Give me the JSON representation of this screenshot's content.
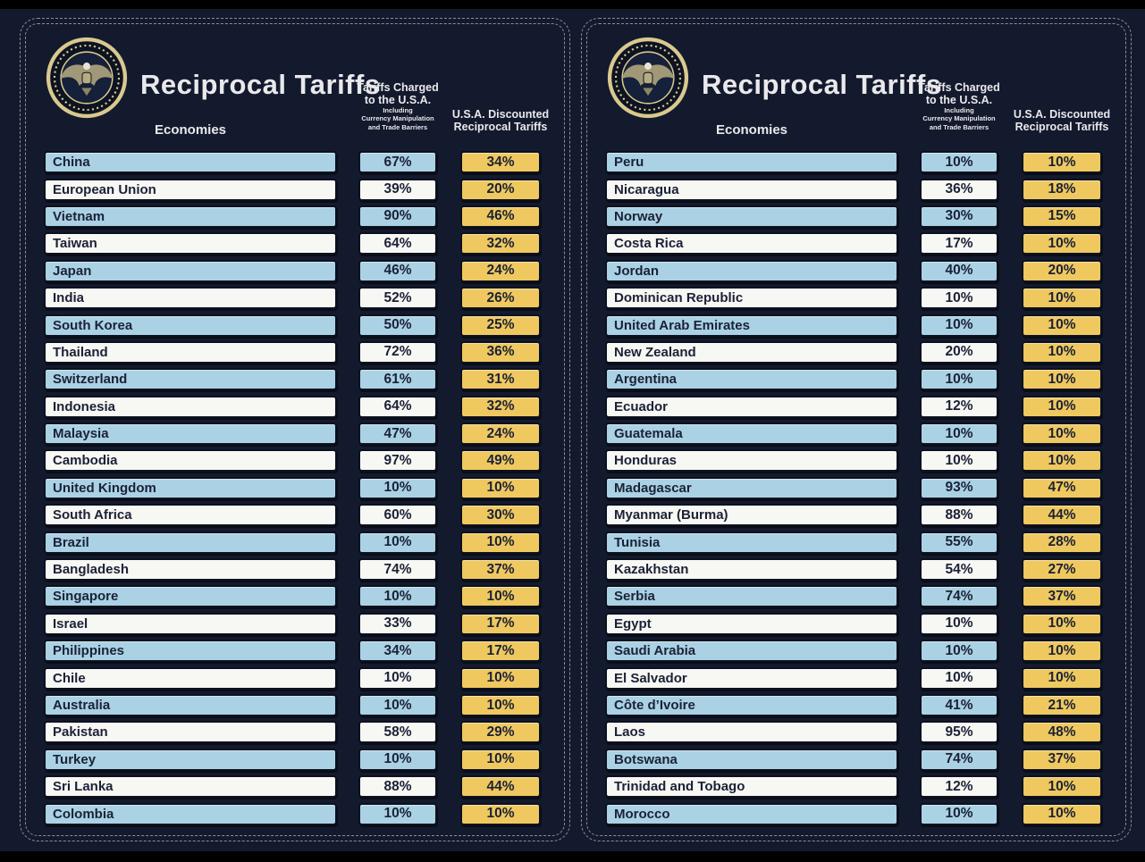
{
  "title": "Reciprocal Tariffs",
  "columns": {
    "economies": "Economies",
    "charged_line1": "Tariffs Charged",
    "charged_line2": "to the U.S.A.",
    "charged_sub1": "Including",
    "charged_sub2": "Currency Manipulation",
    "charged_sub3": "and Trade Barriers",
    "discounted_line1": "U.S.A. Discounted",
    "discounted_line2": "Reciprocal Tariffs"
  },
  "colors": {
    "background": "#141a2d",
    "row_blue": "#aad2e4",
    "row_white": "#f7f7f3",
    "discounted_yellow": "#efc95f",
    "text_ink": "#1b2136",
    "header_text": "#e9e9ec",
    "panel_border": "#8a8e99",
    "seal_gold": "#d9c98e"
  },
  "panels": [
    {
      "rows": [
        {
          "economy": "China",
          "charged": "67%",
          "discounted": "34%"
        },
        {
          "economy": "European Union",
          "charged": "39%",
          "discounted": "20%"
        },
        {
          "economy": "Vietnam",
          "charged": "90%",
          "discounted": "46%"
        },
        {
          "economy": "Taiwan",
          "charged": "64%",
          "discounted": "32%"
        },
        {
          "economy": "Japan",
          "charged": "46%",
          "discounted": "24%"
        },
        {
          "economy": "India",
          "charged": "52%",
          "discounted": "26%"
        },
        {
          "economy": "South Korea",
          "charged": "50%",
          "discounted": "25%"
        },
        {
          "economy": "Thailand",
          "charged": "72%",
          "discounted": "36%"
        },
        {
          "economy": "Switzerland",
          "charged": "61%",
          "discounted": "31%"
        },
        {
          "economy": "Indonesia",
          "charged": "64%",
          "discounted": "32%"
        },
        {
          "economy": "Malaysia",
          "charged": "47%",
          "discounted": "24%"
        },
        {
          "economy": "Cambodia",
          "charged": "97%",
          "discounted": "49%"
        },
        {
          "economy": "United Kingdom",
          "charged": "10%",
          "discounted": "10%"
        },
        {
          "economy": "South Africa",
          "charged": "60%",
          "discounted": "30%"
        },
        {
          "economy": "Brazil",
          "charged": "10%",
          "discounted": "10%"
        },
        {
          "economy": "Bangladesh",
          "charged": "74%",
          "discounted": "37%"
        },
        {
          "economy": "Singapore",
          "charged": "10%",
          "discounted": "10%"
        },
        {
          "economy": "Israel",
          "charged": "33%",
          "discounted": "17%"
        },
        {
          "economy": "Philippines",
          "charged": "34%",
          "discounted": "17%"
        },
        {
          "economy": "Chile",
          "charged": "10%",
          "discounted": "10%"
        },
        {
          "economy": "Australia",
          "charged": "10%",
          "discounted": "10%"
        },
        {
          "economy": "Pakistan",
          "charged": "58%",
          "discounted": "29%"
        },
        {
          "economy": "Turkey",
          "charged": "10%",
          "discounted": "10%"
        },
        {
          "economy": "Sri Lanka",
          "charged": "88%",
          "discounted": "44%"
        },
        {
          "economy": "Colombia",
          "charged": "10%",
          "discounted": "10%"
        }
      ]
    },
    {
      "rows": [
        {
          "economy": "Peru",
          "charged": "10%",
          "discounted": "10%"
        },
        {
          "economy": "Nicaragua",
          "charged": "36%",
          "discounted": "18%"
        },
        {
          "economy": "Norway",
          "charged": "30%",
          "discounted": "15%"
        },
        {
          "economy": "Costa Rica",
          "charged": "17%",
          "discounted": "10%"
        },
        {
          "economy": "Jordan",
          "charged": "40%",
          "discounted": "20%"
        },
        {
          "economy": "Dominican Republic",
          "charged": "10%",
          "discounted": "10%"
        },
        {
          "economy": "United Arab Emirates",
          "charged": "10%",
          "discounted": "10%"
        },
        {
          "economy": "New Zealand",
          "charged": "20%",
          "discounted": "10%"
        },
        {
          "economy": "Argentina",
          "charged": "10%",
          "discounted": "10%"
        },
        {
          "economy": "Ecuador",
          "charged": "12%",
          "discounted": "10%"
        },
        {
          "economy": "Guatemala",
          "charged": "10%",
          "discounted": "10%"
        },
        {
          "economy": "Honduras",
          "charged": "10%",
          "discounted": "10%"
        },
        {
          "economy": "Madagascar",
          "charged": "93%",
          "discounted": "47%"
        },
        {
          "economy": "Myanmar (Burma)",
          "charged": "88%",
          "discounted": "44%"
        },
        {
          "economy": "Tunisia",
          "charged": "55%",
          "discounted": "28%"
        },
        {
          "economy": "Kazakhstan",
          "charged": "54%",
          "discounted": "27%"
        },
        {
          "economy": "Serbia",
          "charged": "74%",
          "discounted": "37%"
        },
        {
          "economy": "Egypt",
          "charged": "10%",
          "discounted": "10%"
        },
        {
          "economy": "Saudi Arabia",
          "charged": "10%",
          "discounted": "10%"
        },
        {
          "economy": "El Salvador",
          "charged": "10%",
          "discounted": "10%"
        },
        {
          "economy": "Côte d’Ivoire",
          "charged": "41%",
          "discounted": "21%"
        },
        {
          "economy": "Laos",
          "charged": "95%",
          "discounted": "48%"
        },
        {
          "economy": "Botswana",
          "charged": "74%",
          "discounted": "37%"
        },
        {
          "economy": "Trinidad and Tobago",
          "charged": "12%",
          "discounted": "10%"
        },
        {
          "economy": "Morocco",
          "charged": "10%",
          "discounted": "10%"
        }
      ]
    }
  ],
  "chart_data": {
    "type": "table",
    "title": "Reciprocal Tariffs",
    "columns": [
      "Economies",
      "Tariffs Charged to the U.S.A. Including Currency Manipulation and Trade Barriers",
      "U.S.A. Discounted Reciprocal Tariffs"
    ],
    "rows": [
      [
        "China",
        67,
        34
      ],
      [
        "European Union",
        39,
        20
      ],
      [
        "Vietnam",
        90,
        46
      ],
      [
        "Taiwan",
        64,
        32
      ],
      [
        "Japan",
        46,
        24
      ],
      [
        "India",
        52,
        26
      ],
      [
        "South Korea",
        50,
        25
      ],
      [
        "Thailand",
        72,
        36
      ],
      [
        "Switzerland",
        61,
        31
      ],
      [
        "Indonesia",
        64,
        32
      ],
      [
        "Malaysia",
        47,
        24
      ],
      [
        "Cambodia",
        97,
        49
      ],
      [
        "United Kingdom",
        10,
        10
      ],
      [
        "South Africa",
        60,
        30
      ],
      [
        "Brazil",
        10,
        10
      ],
      [
        "Bangladesh",
        74,
        37
      ],
      [
        "Singapore",
        10,
        10
      ],
      [
        "Israel",
        33,
        17
      ],
      [
        "Philippines",
        34,
        17
      ],
      [
        "Chile",
        10,
        10
      ],
      [
        "Australia",
        10,
        10
      ],
      [
        "Pakistan",
        58,
        29
      ],
      [
        "Turkey",
        10,
        10
      ],
      [
        "Sri Lanka",
        88,
        44
      ],
      [
        "Colombia",
        10,
        10
      ],
      [
        "Peru",
        10,
        10
      ],
      [
        "Nicaragua",
        36,
        18
      ],
      [
        "Norway",
        30,
        15
      ],
      [
        "Costa Rica",
        17,
        10
      ],
      [
        "Jordan",
        40,
        20
      ],
      [
        "Dominican Republic",
        10,
        10
      ],
      [
        "United Arab Emirates",
        10,
        10
      ],
      [
        "New Zealand",
        20,
        10
      ],
      [
        "Argentina",
        10,
        10
      ],
      [
        "Ecuador",
        12,
        10
      ],
      [
        "Guatemala",
        10,
        10
      ],
      [
        "Honduras",
        10,
        10
      ],
      [
        "Madagascar",
        93,
        47
      ],
      [
        "Myanmar (Burma)",
        88,
        44
      ],
      [
        "Tunisia",
        55,
        28
      ],
      [
        "Kazakhstan",
        54,
        27
      ],
      [
        "Serbia",
        74,
        37
      ],
      [
        "Egypt",
        10,
        10
      ],
      [
        "Saudi Arabia",
        10,
        10
      ],
      [
        "El Salvador",
        10,
        10
      ],
      [
        "Côte d’Ivoire",
        41,
        21
      ],
      [
        "Laos",
        95,
        48
      ],
      [
        "Botswana",
        74,
        37
      ],
      [
        "Trinidad and Tobago",
        12,
        10
      ],
      [
        "Morocco",
        10,
        10
      ]
    ]
  }
}
